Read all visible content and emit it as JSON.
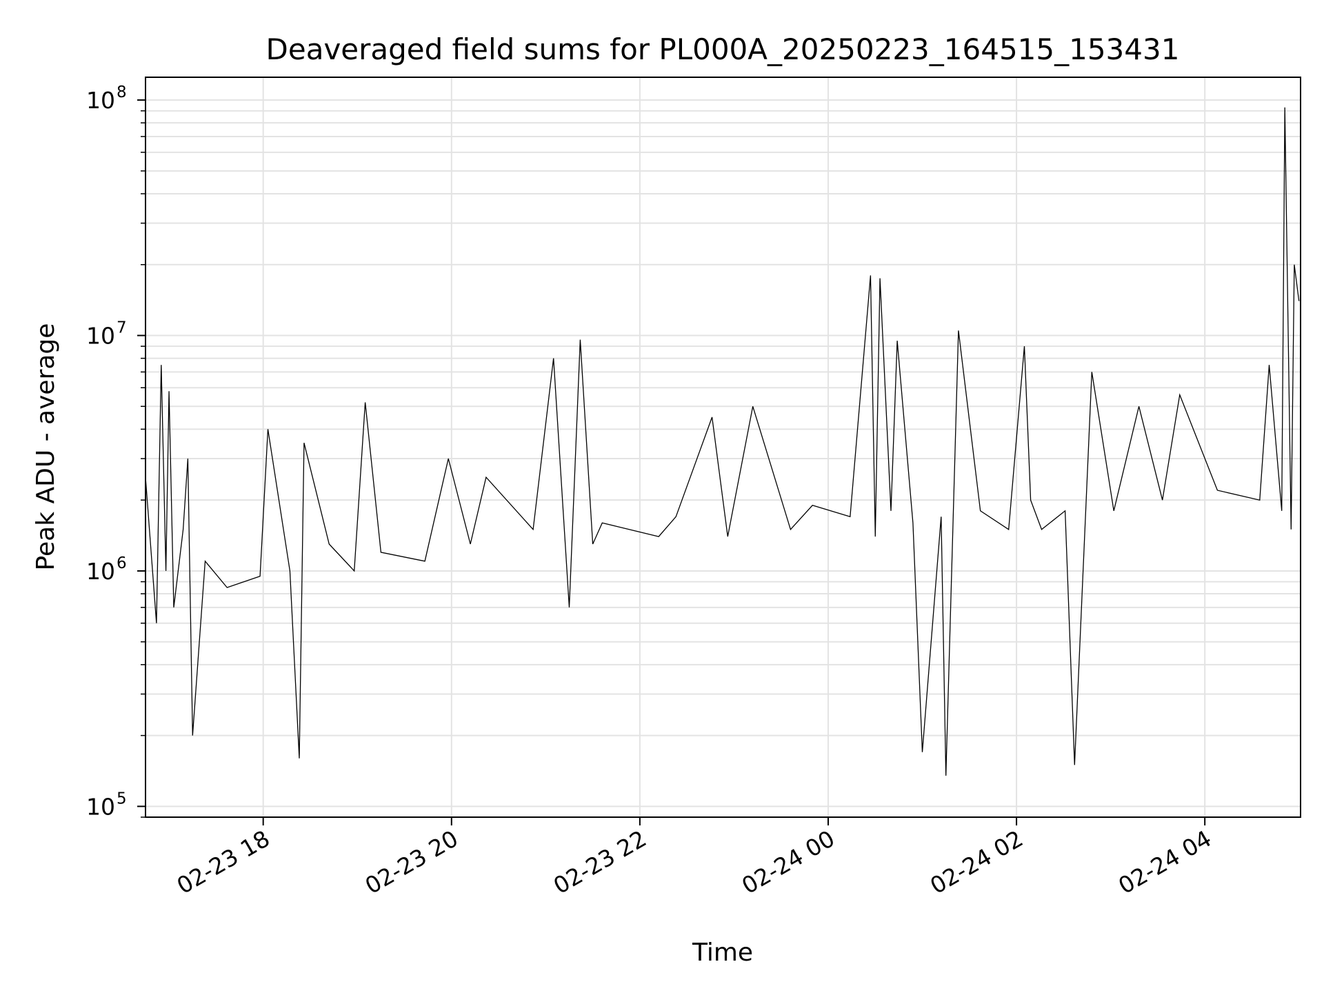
{
  "chart_data": {
    "type": "line",
    "title": "Deaveraged field sums for PL000A_20250223_164515_153431",
    "xlabel": "Time",
    "ylabel": "Peak ADU - average",
    "yscale": "log",
    "grid": true,
    "line_color": "#000000",
    "xlim": [
      "2025-02-23 16:45",
      "2025-02-24 05:01"
    ],
    "ylim": [
      90000,
      125000000
    ],
    "x_ticks": [
      {
        "value": "2025-02-23 18:00",
        "label": "02-23 18"
      },
      {
        "value": "2025-02-23 20:00",
        "label": "02-23 20"
      },
      {
        "value": "2025-02-23 22:00",
        "label": "02-23 22"
      },
      {
        "value": "2025-02-24 00:00",
        "label": "02-24 00"
      },
      {
        "value": "2025-02-24 02:00",
        "label": "02-24 02"
      },
      {
        "value": "2025-02-24 04:00",
        "label": "02-24 04"
      }
    ],
    "y_ticks": [
      {
        "value": 100000,
        "base": "10",
        "exp": "5"
      },
      {
        "value": 1000000,
        "base": "10",
        "exp": "6"
      },
      {
        "value": 10000000,
        "base": "10",
        "exp": "7"
      },
      {
        "value": 100000000,
        "base": "10",
        "exp": "8"
      }
    ],
    "series": [
      {
        "x": [
          "2025-02-23 16:45",
          "2025-02-23 16:52",
          "2025-02-23 16:55",
          "2025-02-23 16:58",
          "2025-02-23 17:00",
          "2025-02-23 17:03",
          "2025-02-23 17:09",
          "2025-02-23 17:12",
          "2025-02-23 17:15",
          "2025-02-23 17:23",
          "2025-02-23 17:37",
          "2025-02-23 17:58",
          "2025-02-23 18:03",
          "2025-02-23 18:17",
          "2025-02-23 18:23",
          "2025-02-23 18:26",
          "2025-02-23 18:42",
          "2025-02-23 18:58",
          "2025-02-23 19:05",
          "2025-02-23 19:15",
          "2025-02-23 19:43",
          "2025-02-23 19:58",
          "2025-02-23 20:12",
          "2025-02-23 20:22",
          "2025-02-23 20:52",
          "2025-02-23 21:05",
          "2025-02-23 21:15",
          "2025-02-23 21:22",
          "2025-02-23 21:30",
          "2025-02-23 21:36",
          "2025-02-23 22:12",
          "2025-02-23 22:23",
          "2025-02-23 22:46",
          "2025-02-23 22:56",
          "2025-02-23 23:12",
          "2025-02-23 23:36",
          "2025-02-23 23:50",
          "2025-02-24 00:14",
          "2025-02-24 00:27",
          "2025-02-24 00:30",
          "2025-02-24 00:33",
          "2025-02-24 00:40",
          "2025-02-24 00:44",
          "2025-02-24 00:54",
          "2025-02-24 01:00",
          "2025-02-24 01:12",
          "2025-02-24 01:15",
          "2025-02-24 01:23",
          "2025-02-24 01:37",
          "2025-02-24 01:55",
          "2025-02-24 02:05",
          "2025-02-24 02:09",
          "2025-02-24 02:16",
          "2025-02-24 02:31",
          "2025-02-24 02:37",
          "2025-02-24 02:48",
          "2025-02-24 03:02",
          "2025-02-24 03:18",
          "2025-02-24 03:33",
          "2025-02-24 03:44",
          "2025-02-24 04:08",
          "2025-02-24 04:35",
          "2025-02-24 04:41",
          "2025-02-24 04:49",
          "2025-02-24 04:51",
          "2025-02-24 04:55",
          "2025-02-24 04:57",
          "2025-02-24 05:00"
        ],
        "y": [
          2500000,
          600000,
          7500000,
          1000000,
          5800000,
          700000,
          1500000,
          3000000,
          200000,
          1100000,
          850000,
          950000,
          4000000,
          1000000,
          160000,
          3500000,
          1300000,
          1000000,
          5200000,
          1200000,
          1100000,
          3000000,
          1300000,
          2500000,
          1500000,
          8000000,
          700000,
          9600000,
          1300000,
          1600000,
          1400000,
          1700000,
          4500000,
          1400000,
          5000000,
          1500000,
          1900000,
          1700000,
          18000000,
          1400000,
          17500000,
          1800000,
          9500000,
          1600000,
          170000,
          1700000,
          135000,
          10500000,
          1800000,
          1500000,
          9000000,
          2000000,
          1500000,
          1800000,
          150000,
          7000000,
          1800000,
          5000000,
          2000000,
          5600000,
          2200000,
          2000000,
          7500000,
          1800000,
          93000000,
          1500000,
          20000000,
          14000000
        ]
      }
    ]
  }
}
